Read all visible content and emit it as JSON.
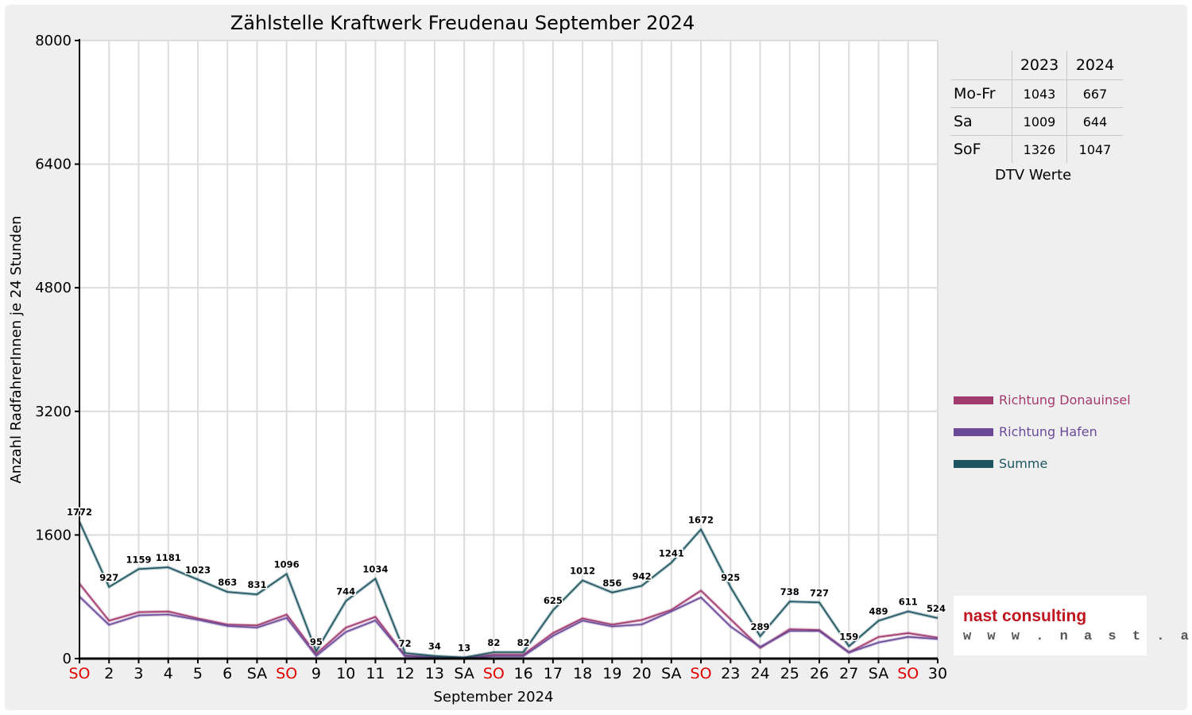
{
  "chart_data": {
    "type": "line",
    "title": "Zählstelle Kraftwerk Freudenau September 2024",
    "xlabel": "September 2024",
    "ylabel": "Anzahl RadfahrerInnen je 24 Stunden",
    "ylim": [
      0,
      8000
    ],
    "yticks": [
      0,
      1600,
      3200,
      4800,
      6400,
      8000
    ],
    "grid": true,
    "legend_position": "right",
    "categories": [
      "SO",
      "2",
      "3",
      "4",
      "5",
      "6",
      "SA",
      "SO",
      "9",
      "10",
      "11",
      "12",
      "13",
      "SA",
      "SO",
      "16",
      "17",
      "18",
      "19",
      "20",
      "SA",
      "SO",
      "23",
      "24",
      "25",
      "26",
      "27",
      "SA",
      "SO",
      "30"
    ],
    "category_colors": [
      "#e00000",
      "#000000",
      "#000000",
      "#000000",
      "#000000",
      "#000000",
      "#000000",
      "#e00000",
      "#000000",
      "#000000",
      "#000000",
      "#000000",
      "#000000",
      "#000000",
      "#e00000",
      "#000000",
      "#000000",
      "#000000",
      "#000000",
      "#000000",
      "#000000",
      "#e00000",
      "#000000",
      "#000000",
      "#000000",
      "#000000",
      "#000000",
      "#000000",
      "#e00000",
      "#000000"
    ],
    "series": [
      {
        "name": "Richtung Donauinsel",
        "color": "#a33a6e",
        "values": [
          970,
          490,
          600,
          610,
          520,
          440,
          430,
          570,
          60,
          400,
          540,
          40,
          20,
          8,
          50,
          50,
          330,
          520,
          440,
          500,
          630,
          880,
          510,
          140,
          380,
          370,
          80,
          280,
          330,
          270
        ]
      },
      {
        "name": "Richtung Hafen",
        "color": "#6b4a9a",
        "values": [
          802,
          437,
          559,
          571,
          503,
          423,
          401,
          526,
          35,
          344,
          494,
          32,
          14,
          5,
          32,
          32,
          295,
          492,
          416,
          442,
          611,
          792,
          415,
          149,
          358,
          357,
          79,
          209,
          281,
          254
        ]
      },
      {
        "name": "Summe",
        "color": "#1d5560",
        "values": [
          1772,
          927,
          1159,
          1181,
          1023,
          863,
          831,
          1096,
          95,
          744,
          1034,
          72,
          34,
          13,
          82,
          82,
          625,
          1012,
          856,
          942,
          1241,
          1672,
          925,
          289,
          738,
          727,
          159,
          489,
          611,
          524
        ]
      }
    ],
    "data_labels": [
      "1772",
      "927",
      "1159",
      "1181",
      "1023",
      "863",
      "831",
      "1096",
      "95",
      "744",
      "1034",
      "72",
      "34",
      "13",
      "82",
      "82",
      "625",
      "1012",
      "856",
      "942",
      "1241",
      "1672",
      "925",
      "289",
      "738",
      "727",
      "159",
      "489",
      "611",
      "524"
    ]
  },
  "dtv_table": {
    "headers": [
      "2023",
      "2024"
    ],
    "rows": [
      {
        "label": "Mo-Fr",
        "v2023": "1043",
        "v2024": "667"
      },
      {
        "label": "Sa",
        "v2023": "1009",
        "v2024": "644"
      },
      {
        "label": "SoF",
        "v2023": "1326",
        "v2024": "1047"
      }
    ],
    "caption": "DTV Werte"
  },
  "logo": {
    "name": "nast consulting",
    "url": "w w w . n a s t . a t",
    "name_color": "#c0141e"
  }
}
